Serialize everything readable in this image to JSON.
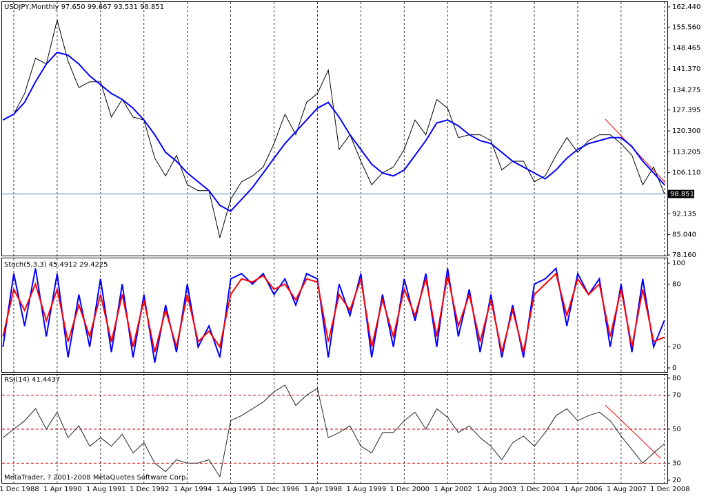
{
  "chart_data": [
    {
      "type": "line",
      "title": "USDJPY,Monthly  97.650 99.667 93.531 98.851",
      "series": [
        {
          "color": "#000000",
          "values": [
            124,
            126,
            133,
            145,
            143,
            158,
            144,
            135,
            137,
            137,
            125,
            131,
            125,
            124,
            111,
            105,
            112,
            102,
            100,
            100,
            84,
            97,
            103,
            105,
            108,
            116,
            126,
            119,
            130,
            133,
            141,
            114,
            119,
            110,
            102,
            106,
            108,
            114,
            124,
            119,
            131,
            128,
            118,
            119,
            119,
            117,
            107,
            110,
            110,
            103,
            105,
            112,
            118,
            113,
            117,
            119,
            119,
            116,
            112,
            102,
            108,
            98.851
          ]
        },
        {
          "color": "#0000ff",
          "values": [
            124,
            126,
            130,
            137,
            143,
            147,
            146,
            143,
            139,
            136,
            133,
            131,
            128,
            124,
            119,
            113,
            110,
            106,
            103,
            100,
            95,
            93,
            97,
            101,
            106,
            111,
            116,
            120,
            124,
            128,
            130,
            125,
            119,
            114,
            109,
            106,
            105,
            107,
            112,
            117,
            123,
            124,
            122,
            119,
            117,
            116,
            113,
            110,
            108,
            106,
            104,
            107,
            111,
            114,
            116,
            117,
            118,
            118,
            115,
            110,
            106,
            102
          ]
        }
      ],
      "ylim": [
        78.16,
        162.44
      ],
      "yticks": [
        {
          "value": 162.44,
          "label": "162.440"
        },
        {
          "value": 155.56,
          "label": "155.560"
        },
        {
          "value": 148.465,
          "label": "148.465"
        },
        {
          "value": 141.37,
          "label": "141.370"
        },
        {
          "value": 134.275,
          "label": "134.275"
        },
        {
          "value": 127.395,
          "label": "127.395"
        },
        {
          "value": 120.3,
          "label": "120.300"
        },
        {
          "value": 113.205,
          "label": "113.205"
        },
        {
          "value": 106.11,
          "label": "106.110"
        },
        {
          "value": 92.135,
          "label": "92.135"
        },
        {
          "value": 85.04,
          "label": "85.040"
        },
        {
          "value": 78.16,
          "label": "78.160"
        }
      ],
      "current_price": 98.851,
      "current_price_color": "#4682b4"
    },
    {
      "type": "line",
      "title": "Stoch(5,3,3) 45.4912 29.4225",
      "series": [
        {
          "color": "#0000ff",
          "values": [
            20,
            90,
            40,
            95,
            30,
            90,
            10,
            70,
            20,
            85,
            15,
            80,
            10,
            70,
            5,
            60,
            15,
            80,
            20,
            40,
            10,
            85,
            90,
            80,
            90,
            70,
            85,
            60,
            90,
            85,
            10,
            80,
            50,
            90,
            10,
            70,
            20,
            85,
            45,
            90,
            20,
            95,
            30,
            75,
            15,
            70,
            10,
            60,
            10,
            80,
            85,
            95,
            40,
            90,
            70,
            85,
            20,
            80,
            15,
            85,
            20,
            45.4912
          ]
        },
        {
          "color": "#ff0000",
          "values": [
            30,
            75,
            55,
            80,
            45,
            75,
            25,
            60,
            30,
            70,
            25,
            70,
            20,
            65,
            15,
            55,
            20,
            70,
            25,
            35,
            20,
            70,
            85,
            82,
            88,
            75,
            80,
            65,
            85,
            82,
            25,
            70,
            55,
            85,
            20,
            65,
            30,
            75,
            50,
            85,
            30,
            88,
            40,
            70,
            25,
            65,
            15,
            55,
            15,
            70,
            80,
            90,
            50,
            85,
            70,
            80,
            30,
            75,
            20,
            75,
            25,
            29.4225
          ]
        }
      ],
      "ylim": [
        0,
        100
      ],
      "yticks": [
        100,
        80,
        20,
        0
      ]
    },
    {
      "type": "line",
      "title": "RSI(14) 41.4437",
      "series": [
        {
          "color": "#222222",
          "values": [
            45,
            50,
            55,
            62,
            50,
            60,
            45,
            52,
            40,
            45,
            40,
            47,
            36,
            42,
            30,
            25,
            32,
            30,
            30,
            32,
            22,
            55,
            58,
            62,
            66,
            72,
            76,
            64,
            70,
            74,
            45,
            48,
            52,
            40,
            36,
            48,
            48,
            55,
            60,
            50,
            62,
            57,
            48,
            52,
            45,
            40,
            32,
            42,
            46,
            40,
            48,
            58,
            62,
            55,
            58,
            60,
            55,
            46,
            38,
            30,
            36,
            41.4437
          ]
        }
      ],
      "ylim": [
        20,
        80
      ],
      "yticks": [
        80,
        70,
        50,
        30,
        20
      ],
      "levels": [
        70,
        50,
        30
      ],
      "level_color": "#cc0000",
      "categories": [
        null,
        "1 Dec 1988",
        null,
        null,
        null,
        "1 Apr 1990",
        null,
        null,
        null,
        "1 Aug 1991",
        null,
        null,
        null,
        "1 Dec 1992",
        null,
        null,
        null,
        "1 Apr 1994",
        null,
        null,
        null,
        "1 Aug 1995",
        null,
        null,
        null,
        "1 Dec 1996",
        null,
        null,
        null,
        "1 Apr 1998",
        null,
        null,
        null,
        "1 Aug 1999",
        null,
        null,
        null,
        "1 Dec 2000",
        null,
        null,
        null,
        "1 Apr 2002",
        null,
        null,
        null,
        "1 Aug 2003",
        null,
        null,
        null,
        "1 Dec 2004",
        null,
        null,
        null,
        "1 Apr 2006",
        null,
        null,
        null,
        "1 Aug 2007",
        null,
        null,
        null,
        "1 Dec 2008"
      ]
    }
  ],
  "copyright": "MetaTrader, ? 2001-2008 MetaQuotes Software Corp."
}
